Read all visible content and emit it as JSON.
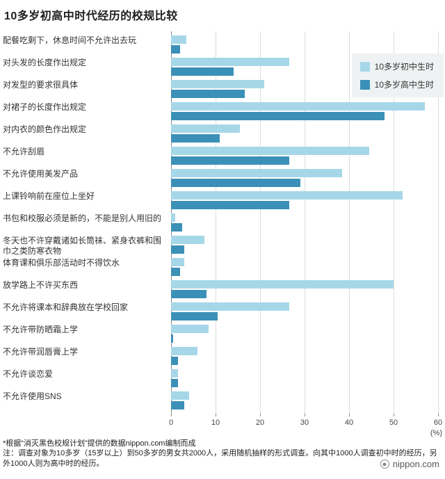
{
  "chart_data": {
    "type": "bar",
    "orientation": "horizontal",
    "title": "10多岁初高中时代经历的校规比较",
    "categories": [
      "配餐吃剩下，休息时间不允许出去玩",
      "对头发的长度作出规定",
      "对发型的要求很具体",
      "对裙子的长度作出规定",
      "对内衣的颜色作出规定",
      "不允许刮眉",
      "不允许使用美发产品",
      "上课铃响前在座位上坐好",
      "书包和校服必须是新的，不能是别人用旧的",
      "冬天也不许穿戴诸如长筒袜、紧身衣裤和围巾之类防寒衣物",
      "体育课和俱乐部活动时不得饮水",
      "放学路上不许买东西",
      "不允许将课本和辞典放在学校回家",
      "不允许带防晒霜上学",
      "不允许带润唇膏上学",
      "不允许谈恋爱",
      "不允许使用SNS"
    ],
    "series": [
      {
        "name": "10多岁初中生时",
        "color": "#a6d7e8",
        "values": [
          3.5,
          26.5,
          21,
          57,
          15.5,
          44.5,
          38.5,
          52,
          1,
          7.5,
          3,
          50,
          26.5,
          8.5,
          6,
          1.5,
          4
        ]
      },
      {
        "name": "10多岁高中生时",
        "color": "#3b90b7",
        "values": [
          2,
          14,
          16.5,
          48,
          11,
          26.5,
          29,
          26.5,
          2.5,
          3,
          2,
          8,
          10.5,
          0.5,
          1.5,
          1.5,
          3
        ]
      }
    ],
    "xlim": [
      0,
      60
    ],
    "xticks": [
      0,
      10,
      20,
      30,
      40,
      50,
      60
    ],
    "x_unit": "(%)",
    "xlabel": "",
    "ylabel": "",
    "grid": true,
    "legend_position": "top-right"
  },
  "footer": {
    "source_note": "*根据“消灭黑色校规计划”提供的数据nippon.com编制而成",
    "survey_note": "注：调查对象为10多岁（15岁以上）到50多岁的男女共2000人，采用随机抽样的形式调查。向其中1000人调查初中时的经历，另外1000人则为高中时的经历。",
    "logo_text": "nippon.com"
  }
}
